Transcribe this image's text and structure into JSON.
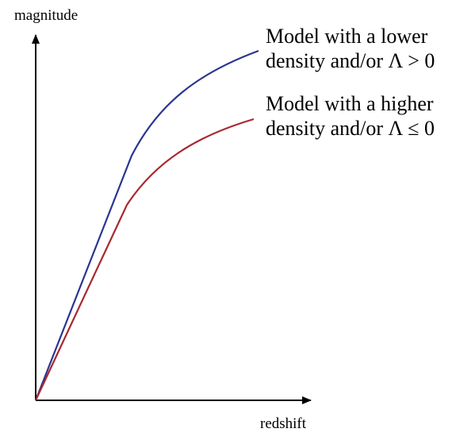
{
  "axes": {
    "y_label": "magnitude",
    "x_label": "redshift",
    "color": "#000000"
  },
  "curves": [
    {
      "name": "lower-density",
      "color": "#2b3590",
      "label_lines": [
        "Model with a lower",
        "density and/or Λ > 0"
      ]
    },
    {
      "name": "higher-density",
      "color": "#a8282e",
      "label_lines": [
        "Model with a higher",
        "density and/or Λ ≤ 0"
      ]
    }
  ]
}
